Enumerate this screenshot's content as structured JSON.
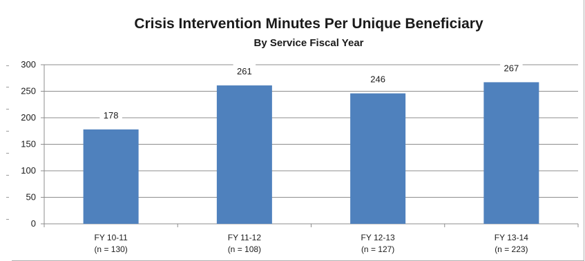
{
  "chart_data": {
    "type": "bar",
    "title": "Crisis Intervention Minutes Per Unique Beneficiary",
    "subtitle": "By Service Fiscal Year",
    "categories": [
      "FY 10-11",
      "FY 11-12",
      "FY 12-13",
      "FY 13-14"
    ],
    "category_notes": [
      "(n = 130)",
      "(n = 108)",
      "(n = 127)",
      "(n = 223)"
    ],
    "values": [
      178,
      261,
      246,
      267
    ],
    "data_labels": [
      "178",
      "261",
      "246",
      "267"
    ],
    "ylim": [
      0,
      300
    ],
    "yticks": [
      0,
      50,
      100,
      150,
      200,
      250,
      300
    ],
    "xlabel": "",
    "ylabel": "",
    "grid": true,
    "legend": "none",
    "bar_color": "#4f81bd"
  }
}
